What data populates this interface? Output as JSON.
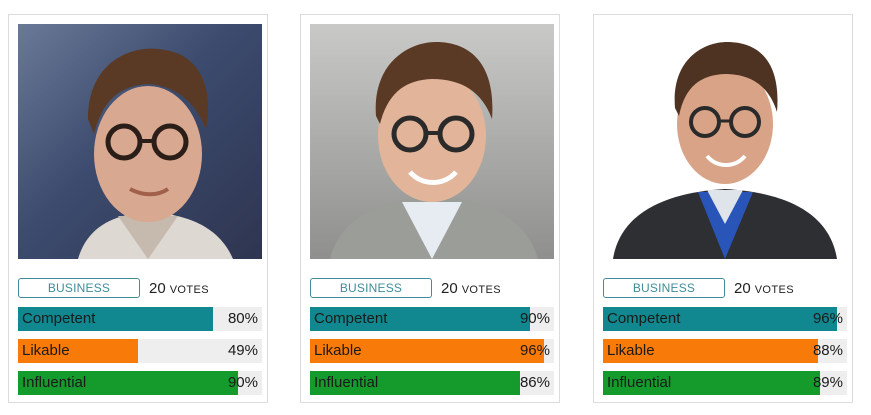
{
  "colors": {
    "competent": "#11888f",
    "likable": "#f87b0a",
    "influential": "#159a2c",
    "badge": "#3f8c9a",
    "track": "#eeeeee"
  },
  "cards": [
    {
      "badge": "BUSINESS",
      "votes": "20",
      "votes_label": "VOTES",
      "photo_icon": "person-photo-icon",
      "bars": [
        {
          "label": "Competent",
          "value": 80,
          "pct": "80%",
          "color_key": "competent"
        },
        {
          "label": "Likable",
          "value": 49,
          "pct": "49%",
          "color_key": "likable"
        },
        {
          "label": "Influential",
          "value": 90,
          "pct": "90%",
          "color_key": "influential"
        }
      ]
    },
    {
      "badge": "BUSINESS",
      "votes": "20",
      "votes_label": "VOTES",
      "photo_icon": "person-photo-icon",
      "bars": [
        {
          "label": "Competent",
          "value": 90,
          "pct": "90%",
          "color_key": "competent"
        },
        {
          "label": "Likable",
          "value": 96,
          "pct": "96%",
          "color_key": "likable"
        },
        {
          "label": "Influential",
          "value": 86,
          "pct": "86%",
          "color_key": "influential"
        }
      ]
    },
    {
      "badge": "BUSINESS",
      "votes": "20",
      "votes_label": "VOTES",
      "photo_icon": "person-photo-icon",
      "bars": [
        {
          "label": "Competent",
          "value": 96,
          "pct": "96%",
          "color_key": "competent"
        },
        {
          "label": "Likable",
          "value": 88,
          "pct": "88%",
          "color_key": "likable"
        },
        {
          "label": "Influential",
          "value": 89,
          "pct": "89%",
          "color_key": "influential"
        }
      ]
    }
  ]
}
